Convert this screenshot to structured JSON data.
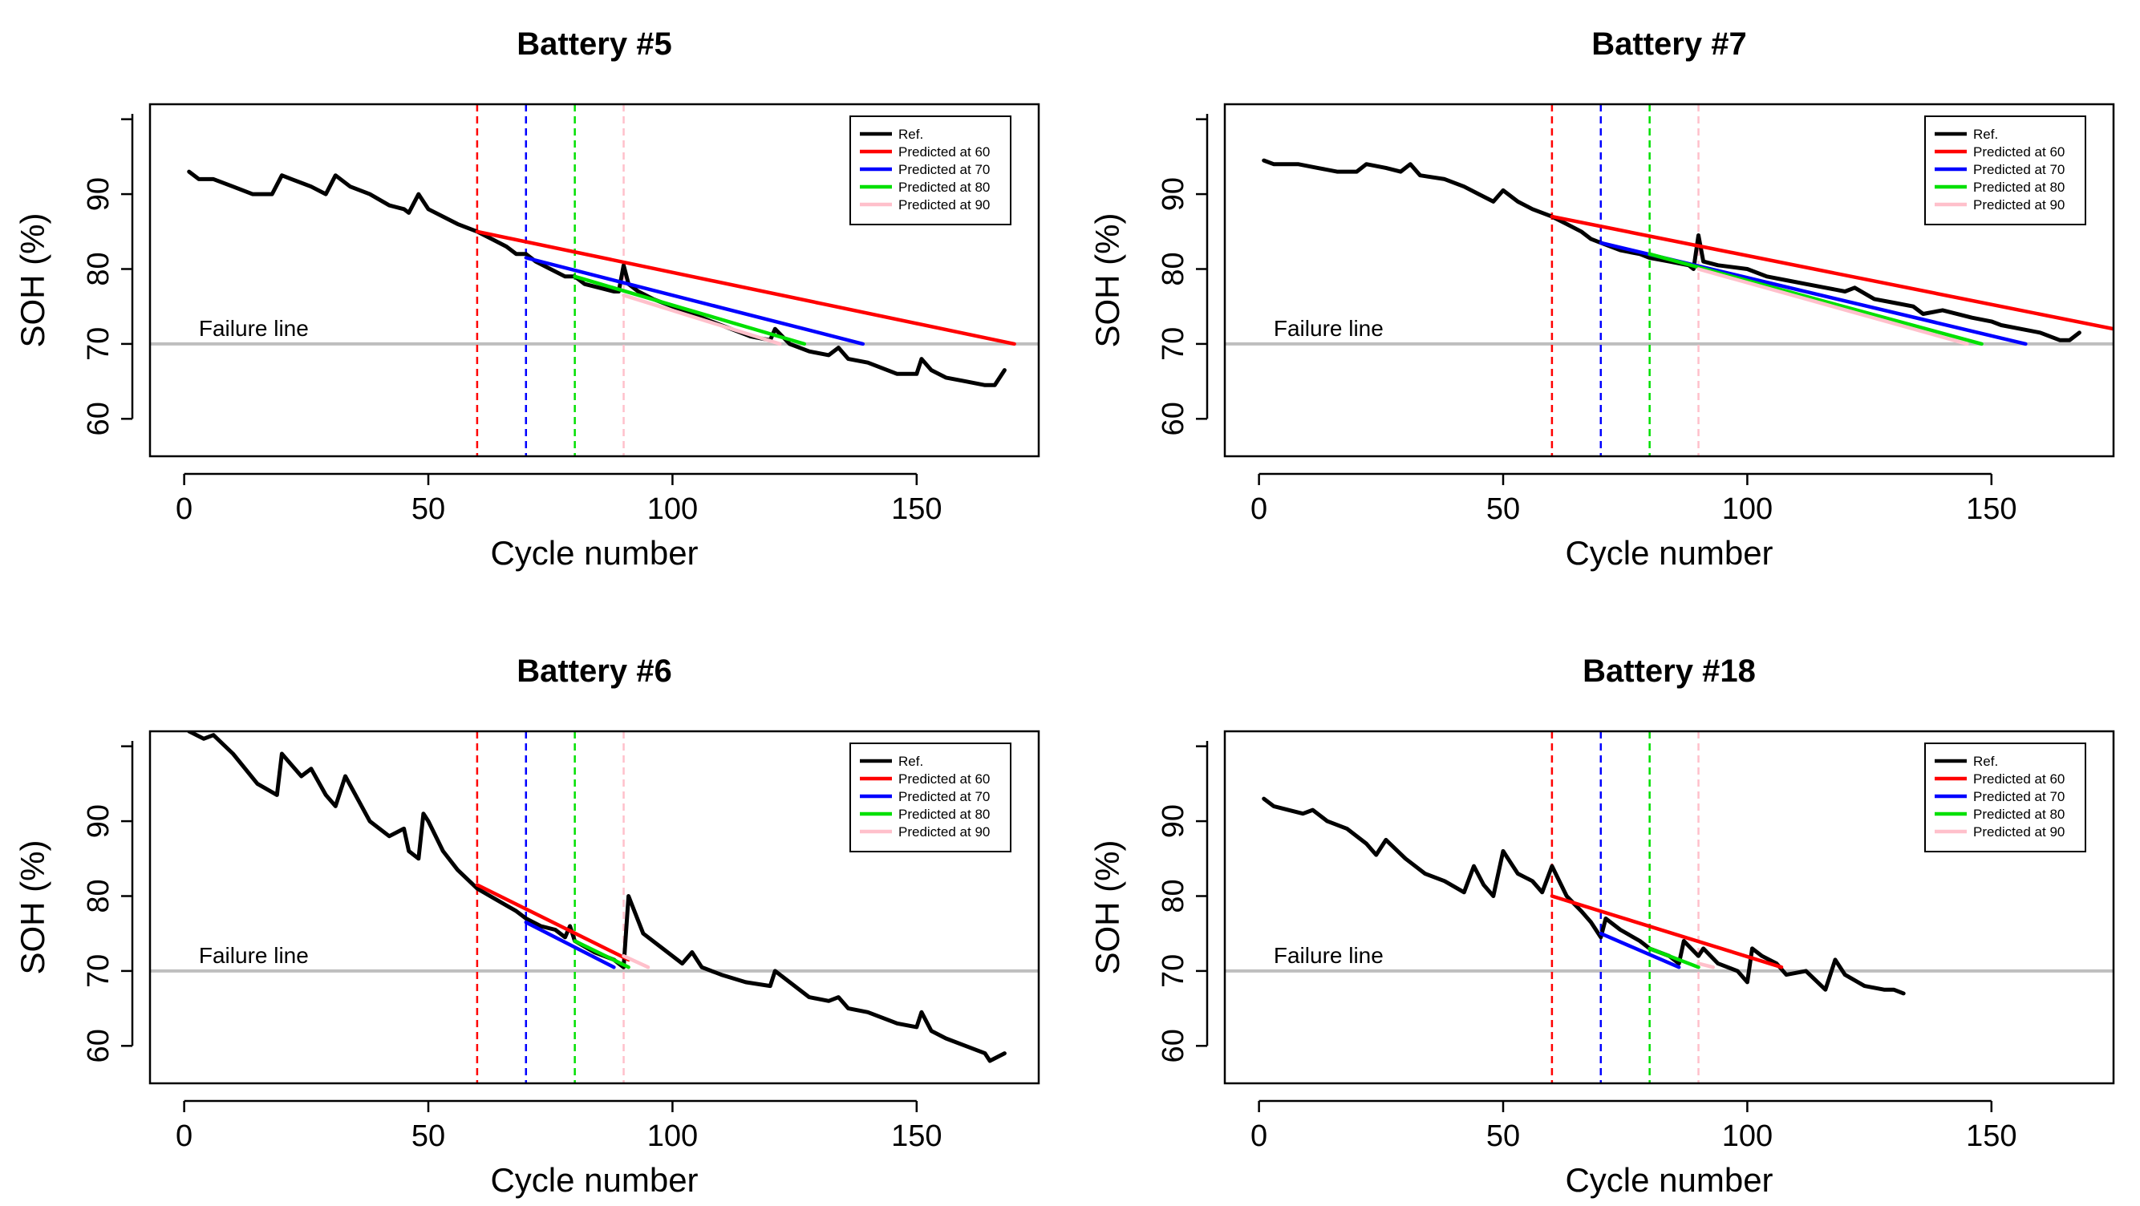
{
  "chart_data": [
    {
      "type": "line",
      "title": "Battery #5",
      "xlabel": "Cycle number",
      "ylabel": "SOH (%)",
      "xlim": [
        -7,
        175
      ],
      "ylim": [
        55,
        102
      ],
      "xticks": [
        0,
        50,
        100,
        150
      ],
      "yticks": [
        60,
        70,
        80,
        90
      ],
      "failure_line": {
        "label": "Failure line",
        "y": 70
      },
      "prediction_markers": [
        60,
        70,
        80,
        90
      ],
      "legend": [
        "Ref.",
        "Predicted at 60",
        "Predicted at 70",
        "Predicted at 80",
        "Predicted at 90"
      ],
      "series": [
        {
          "name": "Ref.",
          "x": [
            1,
            3,
            6,
            10,
            14,
            18,
            20,
            22,
            26,
            29,
            31,
            34,
            38,
            42,
            45,
            46,
            48,
            50,
            53,
            56,
            60,
            63,
            66,
            68,
            70,
            72,
            75,
            78,
            80,
            82,
            85,
            88,
            89,
            90,
            91,
            93,
            96,
            100,
            104,
            108,
            112,
            116,
            120,
            121,
            124,
            128,
            132,
            134,
            136,
            140,
            146,
            150,
            151,
            153,
            156,
            160,
            164,
            166,
            168
          ],
          "y": [
            93,
            92,
            92,
            91,
            90,
            90,
            92.5,
            92,
            91,
            90,
            92.5,
            91,
            90,
            88.5,
            88,
            87.5,
            90,
            88,
            87,
            86,
            85,
            84,
            83,
            82,
            82,
            81,
            80,
            79,
            79,
            78,
            77.5,
            77,
            77,
            80.5,
            78,
            77,
            76,
            75,
            74,
            73,
            72,
            71,
            70.5,
            72,
            70,
            69,
            68.5,
            69.5,
            68,
            67.5,
            66,
            66,
            68,
            66.5,
            65.5,
            65,
            64.5,
            64.5,
            66.5
          ]
        },
        {
          "name": "Predicted at 60",
          "x": [
            60,
            170
          ],
          "y": [
            85,
            70
          ]
        },
        {
          "name": "Predicted at 70",
          "x": [
            70,
            139
          ],
          "y": [
            81.5,
            70
          ]
        },
        {
          "name": "Predicted at 80",
          "x": [
            80,
            127
          ],
          "y": [
            79,
            70
          ]
        },
        {
          "name": "Predicted at 90",
          "x": [
            90,
            122
          ],
          "y": [
            76.5,
            70
          ]
        }
      ]
    },
    {
      "type": "line",
      "title": "Battery #7",
      "xlabel": "Cycle number",
      "ylabel": "SOH (%)",
      "xlim": [
        -7,
        175
      ],
      "ylim": [
        55,
        102
      ],
      "xticks": [
        0,
        50,
        100,
        150
      ],
      "yticks": [
        60,
        70,
        80,
        90
      ],
      "failure_line": {
        "label": "Failure line",
        "y": 70
      },
      "prediction_markers": [
        60,
        70,
        80,
        90
      ],
      "legend": [
        "Ref.",
        "Predicted at 60",
        "Predicted at 70",
        "Predicted at 80",
        "Predicted at 90"
      ],
      "series": [
        {
          "name": "Ref.",
          "x": [
            1,
            3,
            8,
            12,
            16,
            20,
            22,
            26,
            29,
            31,
            33,
            38,
            42,
            45,
            48,
            50,
            53,
            56,
            60,
            63,
            66,
            68,
            70,
            74,
            78,
            80,
            84,
            88,
            89,
            90,
            91,
            94,
            100,
            104,
            108,
            112,
            116,
            120,
            122,
            126,
            130,
            134,
            136,
            140,
            146,
            150,
            152,
            156,
            160,
            164,
            166,
            168
          ],
          "y": [
            94.5,
            94,
            94,
            93.5,
            93,
            93,
            94,
            93.5,
            93,
            94,
            92.5,
            92,
            91,
            90,
            89,
            90.5,
            89,
            88,
            87,
            86,
            85,
            84,
            83.5,
            82.5,
            82,
            81.5,
            81,
            80.5,
            80,
            84.5,
            81,
            80.5,
            80,
            79,
            78.5,
            78,
            77.5,
            77,
            77.5,
            76,
            75.5,
            75,
            74,
            74.5,
            73.5,
            73,
            72.5,
            72,
            71.5,
            70.5,
            70.5,
            71.5
          ]
        },
        {
          "name": "Predicted at 60",
          "x": [
            60,
            175
          ],
          "y": [
            87,
            72
          ]
        },
        {
          "name": "Predicted at 70",
          "x": [
            70,
            157
          ],
          "y": [
            83.5,
            70
          ]
        },
        {
          "name": "Predicted at 80",
          "x": [
            80,
            148
          ],
          "y": [
            82,
            70
          ]
        },
        {
          "name": "Predicted at 90",
          "x": [
            90,
            145
          ],
          "y": [
            80,
            70
          ]
        }
      ]
    },
    {
      "type": "line",
      "title": "Battery #6",
      "xlabel": "Cycle number",
      "ylabel": "SOH (%)",
      "xlim": [
        -7,
        175
      ],
      "ylim": [
        55,
        102
      ],
      "xticks": [
        0,
        50,
        100,
        150
      ],
      "yticks": [
        60,
        70,
        80,
        90
      ],
      "failure_line": {
        "label": "Failure line",
        "y": 70
      },
      "prediction_markers": [
        60,
        70,
        80,
        90
      ],
      "legend": [
        "Ref.",
        "Predicted at 60",
        "Predicted at 70",
        "Predicted at 80",
        "Predicted at 90"
      ],
      "series": [
        {
          "name": "Ref.",
          "x": [
            1,
            4,
            6,
            10,
            15,
            19,
            20,
            22,
            24,
            26,
            29,
            31,
            33,
            38,
            42,
            45,
            46,
            48,
            49,
            50,
            53,
            56,
            60,
            64,
            68,
            70,
            73,
            76,
            78,
            79,
            80,
            84,
            88,
            89,
            90,
            91,
            94,
            98,
            102,
            104,
            106,
            110,
            115,
            120,
            121,
            124,
            128,
            132,
            134,
            136,
            140,
            146,
            150,
            151,
            153,
            156,
            160,
            164,
            165,
            168
          ],
          "y": [
            102,
            101,
            101.5,
            99,
            95,
            93.5,
            99,
            97.5,
            96,
            97,
            93.5,
            92,
            96,
            90,
            88,
            89,
            86,
            85,
            91,
            90,
            86,
            83.5,
            81,
            79.5,
            78,
            77,
            76,
            75.5,
            74.5,
            76,
            74,
            72.5,
            71.5,
            71,
            70.5,
            80,
            75,
            73,
            71,
            72.5,
            70.5,
            69.5,
            68.5,
            68,
            70,
            68.5,
            66.5,
            66,
            66.5,
            65,
            64.5,
            63,
            62.5,
            64.5,
            62,
            61,
            60,
            59,
            58,
            59
          ]
        },
        {
          "name": "Predicted at 60",
          "x": [
            60,
            91
          ],
          "y": [
            81.5,
            71.5
          ]
        },
        {
          "name": "Predicted at 70",
          "x": [
            70,
            88
          ],
          "y": [
            76.5,
            70.5
          ]
        },
        {
          "name": "Predicted at 80",
          "x": [
            80,
            91
          ],
          "y": [
            74,
            70.5
          ]
        },
        {
          "name": "Predicted at 90",
          "x": [
            90,
            95
          ],
          "y": [
            72,
            70.5
          ]
        }
      ]
    },
    {
      "type": "line",
      "title": "Battery #18",
      "xlabel": "Cycle number",
      "ylabel": "SOH (%)",
      "xlim": [
        -7,
        175
      ],
      "ylim": [
        55,
        102
      ],
      "xticks": [
        0,
        50,
        100,
        150
      ],
      "yticks": [
        60,
        70,
        80,
        90
      ],
      "failure_line": {
        "label": "Failure line",
        "y": 70
      },
      "prediction_markers": [
        60,
        70,
        80,
        90
      ],
      "legend": [
        "Ref.",
        "Predicted at 60",
        "Predicted at 70",
        "Predicted at 80",
        "Predicted at 90"
      ],
      "series": [
        {
          "name": "Ref.",
          "x": [
            1,
            3,
            6,
            9,
            11,
            14,
            18,
            22,
            24,
            26,
            30,
            34,
            38,
            42,
            44,
            46,
            48,
            50,
            51,
            53,
            56,
            58,
            60,
            63,
            66,
            68,
            70,
            71,
            74,
            78,
            80,
            84,
            86,
            87,
            90,
            91,
            94,
            98,
            100,
            101,
            103,
            106,
            108,
            112,
            116,
            118,
            120,
            124,
            128,
            130,
            132
          ],
          "y": [
            93,
            92,
            91.5,
            91,
            91.5,
            90,
            89,
            87,
            85.5,
            87.5,
            85,
            83,
            82,
            80.5,
            84,
            81.5,
            80,
            86,
            85,
            83,
            82,
            80.5,
            84,
            80,
            78,
            76.5,
            74.5,
            77,
            75.5,
            74,
            73,
            72,
            71,
            74,
            72,
            73,
            71,
            70,
            68.5,
            73,
            72,
            71,
            69.5,
            70,
            67.5,
            71.5,
            69.5,
            68,
            67.5,
            67.5,
            67
          ]
        },
        {
          "name": "Predicted at 60",
          "x": [
            60,
            107
          ],
          "y": [
            80,
            70.5
          ]
        },
        {
          "name": "Predicted at 70",
          "x": [
            70,
            86
          ],
          "y": [
            75,
            70.5
          ]
        },
        {
          "name": "Predicted at 80",
          "x": [
            80,
            90
          ],
          "y": [
            73,
            70.5
          ]
        },
        {
          "name": "Predicted at 90",
          "x": [
            90,
            93
          ],
          "y": [
            71,
            70.5
          ]
        }
      ]
    }
  ],
  "style": {
    "series_colors": [
      "#000000",
      "#ff0000",
      "#0000ff",
      "#00e000",
      "#ffc0cb"
    ],
    "marker_colors": [
      "#ff0000",
      "#0000ff",
      "#00e000",
      "#ffc0cb"
    ],
    "failure_line_color": "#bebebe"
  }
}
